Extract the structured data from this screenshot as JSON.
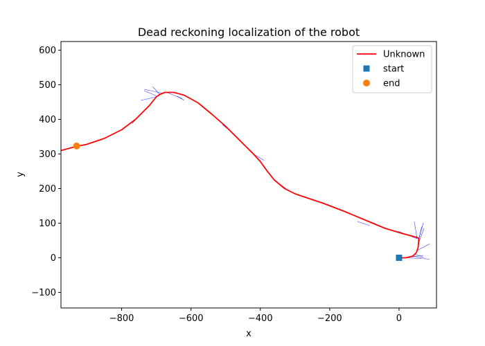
{
  "chart_data": {
    "type": "line",
    "title": "Dead reckoning localization of the robot",
    "xlabel": "x",
    "ylabel": "y",
    "xlim": [
      -975,
      108
    ],
    "ylim": [
      -145,
      625
    ],
    "xticks": [
      -800,
      -600,
      -400,
      -200,
      0
    ],
    "xtick_labels": [
      "−800",
      "−600",
      "−400",
      "−200",
      "0"
    ],
    "yticks": [
      -100,
      0,
      100,
      200,
      300,
      400,
      500,
      600
    ],
    "ytick_labels": [
      "−100",
      "0",
      "100",
      "200",
      "300",
      "400",
      "500",
      "600"
    ],
    "grid": false,
    "legend_placement": "top-right",
    "colors": {
      "path": "#ff0000",
      "heading": "#0000ff",
      "start": "#1f77b4",
      "end": "#ff7f0e",
      "axes": "#000000"
    },
    "series": [
      {
        "name": "Unknown",
        "marker": "line",
        "x": [
          0,
          20,
          40,
          50,
          55,
          57,
          54,
          40,
          10,
          -40,
          -100,
          -160,
          -220,
          -280,
          -300,
          -330,
          -360,
          -380,
          -400,
          -420,
          -440,
          -470,
          -500,
          -540,
          -580,
          -620,
          -650,
          -675,
          -690,
          -700,
          -720,
          -760,
          -800,
          -850,
          -900,
          -930,
          -975
        ],
        "y": [
          0,
          0,
          5,
          15,
          30,
          55,
          58,
          62,
          70,
          85,
          110,
          135,
          158,
          178,
          185,
          200,
          225,
          250,
          278,
          300,
          320,
          350,
          380,
          415,
          448,
          470,
          478,
          478,
          472,
          465,
          440,
          400,
          370,
          345,
          328,
          322,
          310
        ]
      },
      {
        "name": "start",
        "marker": "square",
        "x": [
          0
        ],
        "y": [
          0
        ]
      },
      {
        "name": "end",
        "marker": "circle",
        "x": [
          -930
        ],
        "y": [
          323
        ]
      }
    ],
    "heading_arrows": [
      {
        "x": 52,
        "y": 55,
        "dx": -55,
        "dy": 22
      },
      {
        "x": 52,
        "y": 55,
        "dx": -8,
        "dy": 50
      },
      {
        "x": 55,
        "y": 50,
        "dx": 15,
        "dy": 50
      },
      {
        "x": 57,
        "y": 45,
        "dx": 15,
        "dy": 40
      },
      {
        "x": 55,
        "y": 40,
        "dx": 10,
        "dy": 50
      },
      {
        "x": 50,
        "y": 20,
        "dx": 38,
        "dy": 20
      },
      {
        "x": 45,
        "y": 10,
        "dx": 25,
        "dy": -8
      },
      {
        "x": 40,
        "y": 5,
        "dx": 48,
        "dy": -10
      },
      {
        "x": 30,
        "y": 2,
        "dx": 40,
        "dy": 5
      },
      {
        "x": 20,
        "y": 0,
        "dx": 45,
        "dy": -2
      },
      {
        "x": -120,
        "y": 105,
        "dx": 35,
        "dy": -12
      },
      {
        "x": -360,
        "y": 225,
        "dx": -20,
        "dy": 25
      },
      {
        "x": -340,
        "y": 210,
        "dx": 20,
        "dy": -15
      },
      {
        "x": -420,
        "y": 300,
        "dx": 30,
        "dy": -18
      },
      {
        "x": -510,
        "y": 385,
        "dx": 15,
        "dy": -12
      },
      {
        "x": -620,
        "y": 455,
        "dx": -20,
        "dy": 12
      },
      {
        "x": -670,
        "y": 478,
        "dx": 45,
        "dy": -18
      },
      {
        "x": -680,
        "y": 475,
        "dx": -55,
        "dy": 12
      },
      {
        "x": -690,
        "y": 472,
        "dx": -20,
        "dy": 22
      },
      {
        "x": -700,
        "y": 465,
        "dx": -45,
        "dy": -10
      },
      {
        "x": -720,
        "y": 440,
        "dx": -20,
        "dy": -20
      },
      {
        "x": -740,
        "y": 420,
        "dx": -30,
        "dy": -32
      },
      {
        "x": -700,
        "y": 468,
        "dx": -35,
        "dy": 15
      }
    ]
  }
}
